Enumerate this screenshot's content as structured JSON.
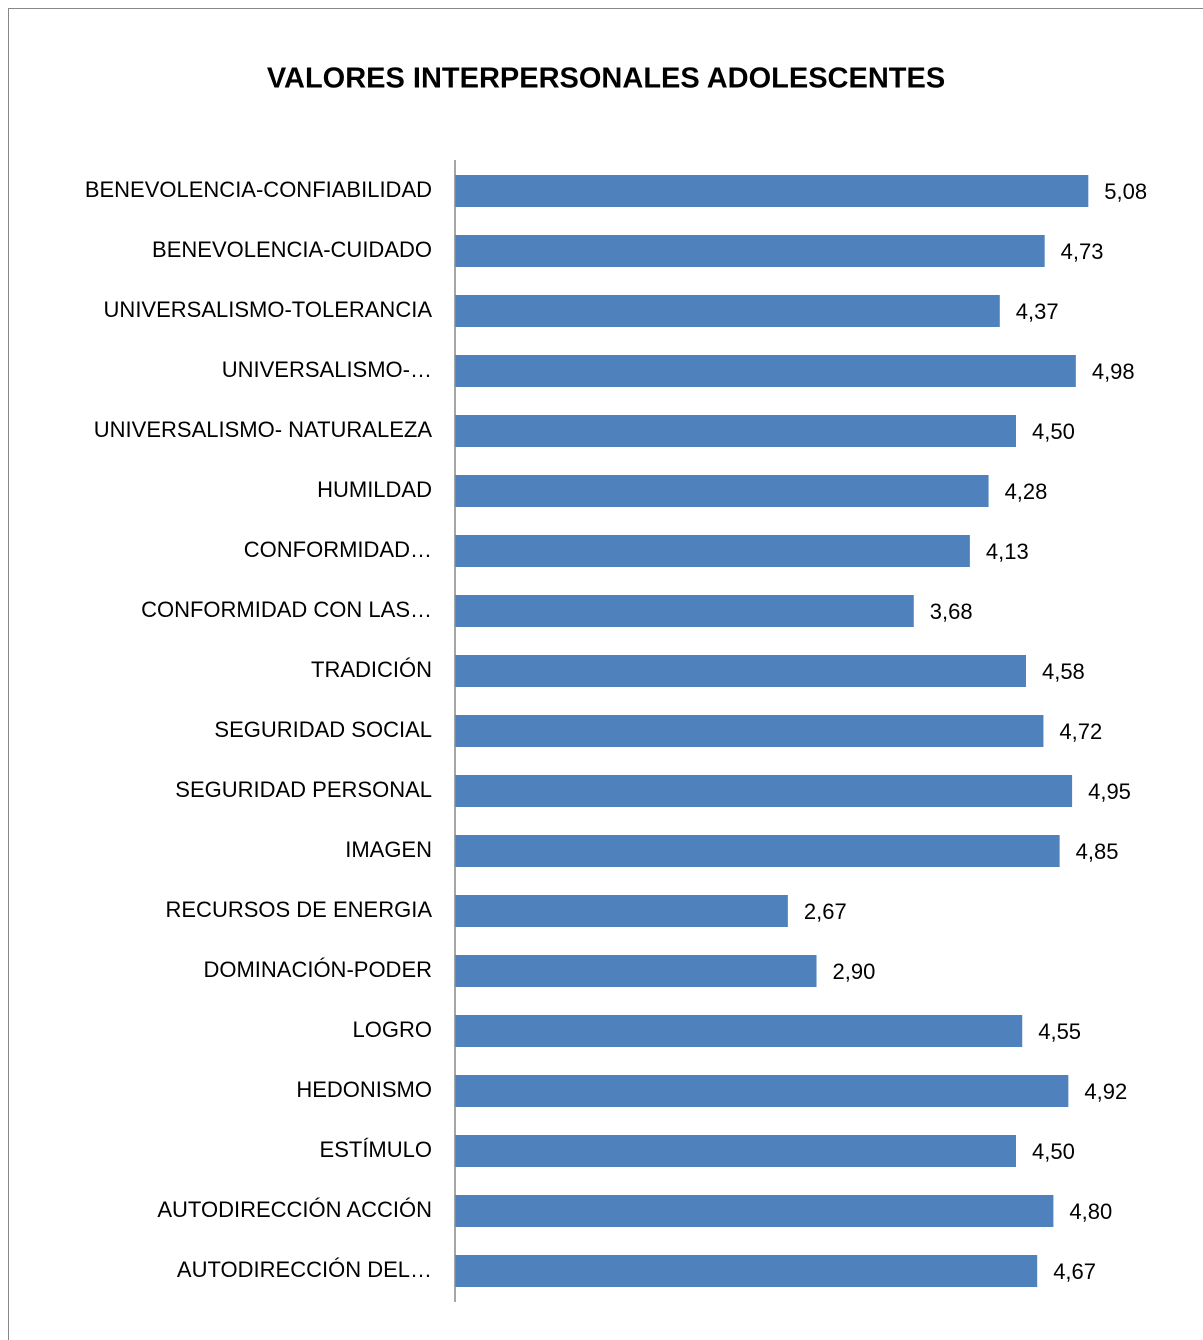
{
  "chart_data": {
    "type": "barh",
    "title": "VALORES INTERPERSONALES ADOLESCENTES",
    "categories": [
      "BENEVOLENCIA-CONFIABILIDAD",
      "BENEVOLENCIA-CUIDADO",
      "UNIVERSALISMO-TOLERANCIA",
      "UNIVERSALISMO-…",
      "UNIVERSALISMO- NATURALEZA",
      "HUMILDAD",
      "CONFORMIDAD…",
      "CONFORMIDAD CON LAS…",
      "TRADICIÓN",
      "SEGURIDAD SOCIAL",
      "SEGURIDAD PERSONAL",
      "IMAGEN",
      "RECURSOS DE ENERGIA",
      "DOMINACIÓN-PODER",
      "LOGRO",
      "HEDONISMO",
      "ESTÍMULO",
      "AUTODIRECCIÓN ACCIÓN",
      "AUTODIRECCIÓN DEL…"
    ],
    "values": [
      5.08,
      4.73,
      4.37,
      4.98,
      4.5,
      4.28,
      4.13,
      3.68,
      4.58,
      4.72,
      4.95,
      4.85,
      2.67,
      2.9,
      4.55,
      4.92,
      4.5,
      4.8,
      4.67
    ],
    "value_labels": [
      "5,08",
      "4,73",
      "4,37",
      "4,98",
      "4,50",
      "4,28",
      "4,13",
      "3,68",
      "4,58",
      "4,72",
      "4,95",
      "4,85",
      "2,67",
      "2,90",
      "4,55",
      "4,92",
      "4,50",
      "4,80",
      "4,67"
    ],
    "color": "#4f81bd",
    "xlim": [
      0,
      6
    ]
  }
}
